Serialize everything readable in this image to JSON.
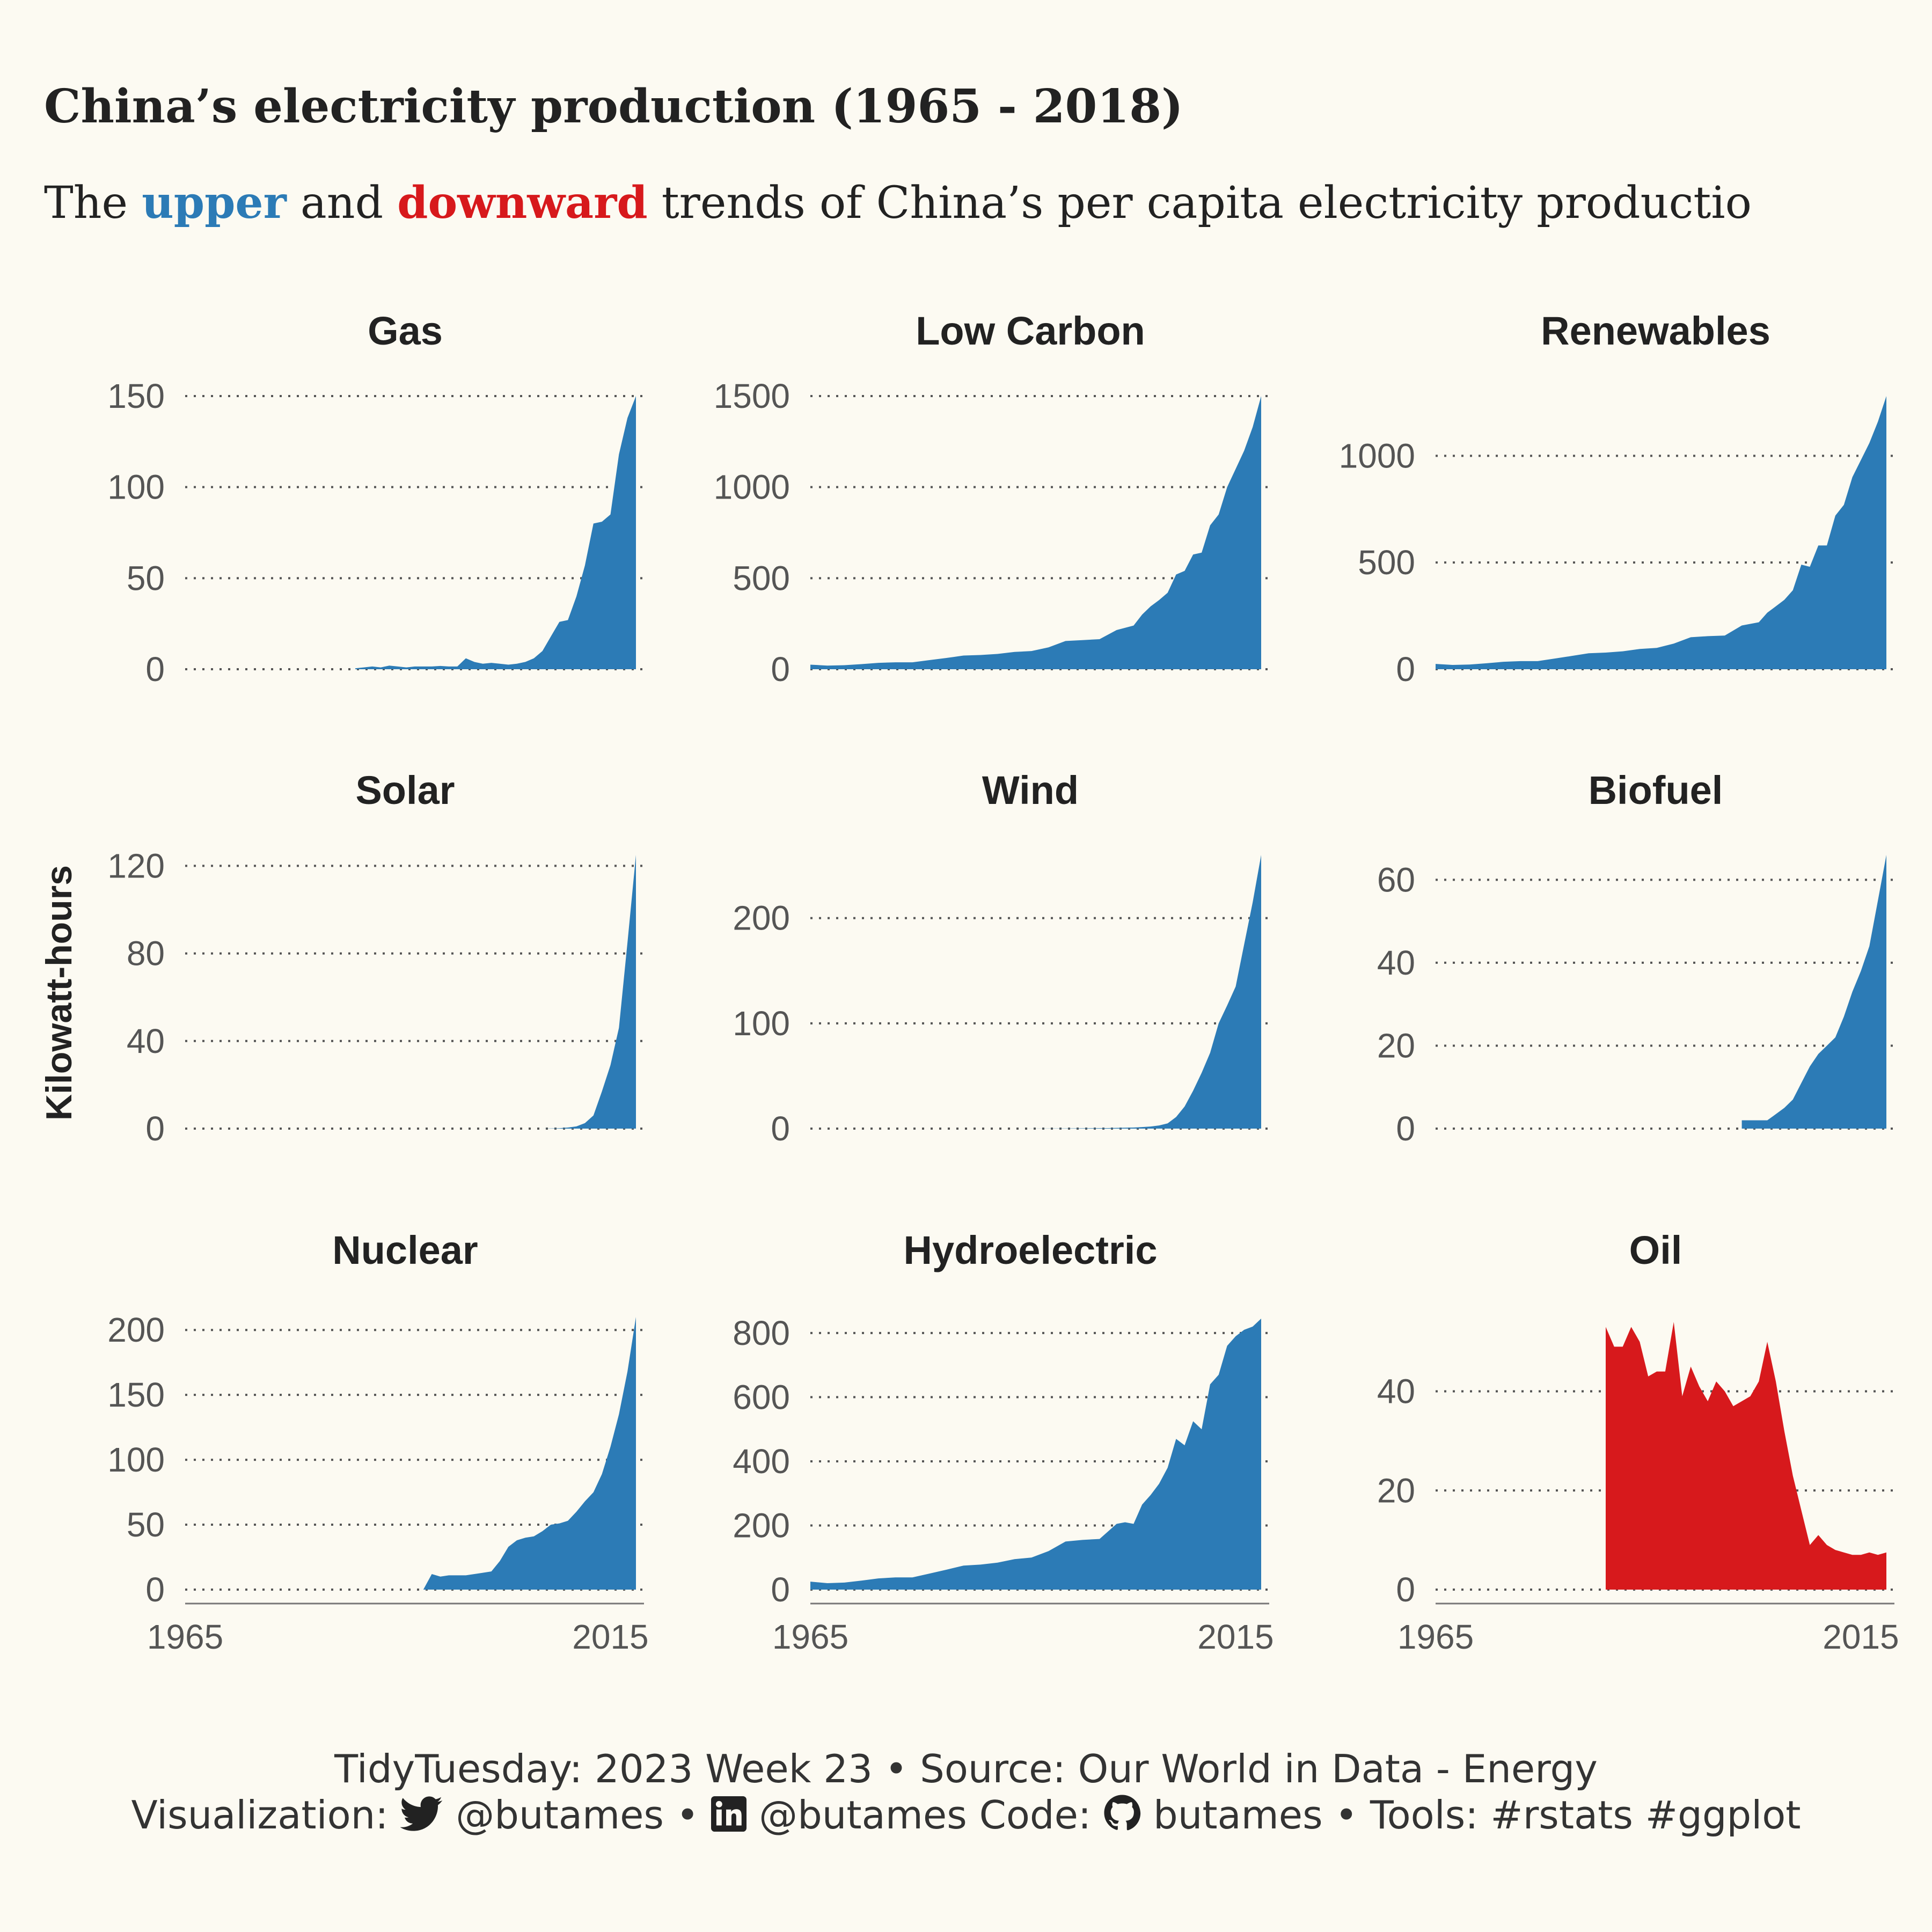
{
  "title": "China’s electricity production (1965 - 2018)",
  "subtitle": {
    "prefix": "The",
    "upper_word": "upper",
    "mid": "and",
    "downward_word": "downward",
    "suffix": "trends of China’s per capita electricity productio"
  },
  "colors": {
    "upper": "#2c7bb6",
    "downward": "#d7191c",
    "background": "#fcfaf2",
    "text": "#222222",
    "grid": "#555555"
  },
  "caption": {
    "line1": "TidyTuesday: 2023 Week 23 • Source: Our World in Data - Energy",
    "visualization_label": "Visualization:",
    "twitter_icon": "twitter-icon",
    "twitter_handle": "@butames",
    "bullet1": "•",
    "linkedin_icon": "linkedin-icon",
    "linkedin_handle": "@butames",
    "code_label": "Code:",
    "github_icon": "github-icon",
    "github_handle": "butames",
    "tools": "• Tools: #rstats #ggplot"
  },
  "chart_data": [
    {
      "type": "area",
      "title": "Gas",
      "trend": "upper",
      "ylabel": "Kilowatt-hours",
      "xlim": [
        1965,
        2018
      ],
      "ylim": [
        0,
        150
      ],
      "yticks": [
        0,
        50,
        100,
        150
      ],
      "xticks": [
        1965,
        2015
      ],
      "grid": true,
      "x": [
        1985,
        1986,
        1987,
        1988,
        1989,
        1990,
        1991,
        1992,
        1993,
        1994,
        1995,
        1996,
        1997,
        1998,
        1999,
        2000,
        2001,
        2002,
        2003,
        2004,
        2005,
        2006,
        2007,
        2008,
        2009,
        2010,
        2011,
        2012,
        2013,
        2014,
        2015,
        2016,
        2017,
        2018
      ],
      "values": [
        0.5,
        1,
        1.5,
        1,
        2,
        1.5,
        1,
        1.5,
        1.5,
        1.5,
        1.8,
        1.5,
        1.5,
        6,
        4,
        3,
        3.5,
        3,
        2.5,
        3,
        4,
        6,
        10,
        18,
        26,
        27,
        40,
        57,
        80,
        81,
        85,
        118,
        138,
        150
      ]
    },
    {
      "type": "area",
      "title": "Low Carbon",
      "trend": "upper",
      "ylabel": "Kilowatt-hours",
      "xlim": [
        1965,
        2018
      ],
      "ylim": [
        0,
        1500
      ],
      "yticks": [
        0,
        500,
        1000,
        1500
      ],
      "xticks": [
        1965,
        2015
      ],
      "grid": true,
      "x": [
        1965,
        1967,
        1969,
        1971,
        1973,
        1975,
        1977,
        1979,
        1981,
        1983,
        1985,
        1987,
        1989,
        1991,
        1993,
        1995,
        1997,
        1999,
        2001,
        2003,
        2004,
        2005,
        2006,
        2007,
        2008,
        2009,
        2010,
        2011,
        2012,
        2013,
        2014,
        2015,
        2016,
        2017,
        2018
      ],
      "values": [
        25,
        20,
        22,
        28,
        35,
        38,
        38,
        50,
        62,
        75,
        78,
        84,
        95,
        100,
        120,
        155,
        160,
        165,
        215,
        240,
        300,
        345,
        380,
        420,
        520,
        540,
        630,
        640,
        790,
        850,
        1000,
        1100,
        1200,
        1330,
        1500
      ]
    },
    {
      "type": "area",
      "title": "Renewables",
      "trend": "upper",
      "ylabel": "Kilowatt-hours",
      "xlim": [
        1965,
        2018
      ],
      "ylim": [
        0,
        1280
      ],
      "yticks": [
        0,
        500,
        1000
      ],
      "xticks": [
        1965,
        2015
      ],
      "grid": true,
      "x": [
        1965,
        1967,
        1969,
        1971,
        1973,
        1975,
        1977,
        1979,
        1981,
        1983,
        1985,
        1987,
        1989,
        1991,
        1993,
        1995,
        1997,
        1999,
        2001,
        2003,
        2004,
        2005,
        2006,
        2007,
        2008,
        2009,
        2010,
        2011,
        2012,
        2013,
        2014,
        2015,
        2016,
        2017,
        2018
      ],
      "values": [
        25,
        20,
        22,
        28,
        35,
        38,
        38,
        50,
        62,
        75,
        78,
        84,
        95,
        100,
        120,
        150,
        155,
        158,
        205,
        220,
        265,
        295,
        325,
        370,
        490,
        480,
        580,
        580,
        720,
        770,
        900,
        980,
        1060,
        1160,
        1280
      ]
    },
    {
      "type": "area",
      "title": "Solar",
      "trend": "upper",
      "ylabel": "Kilowatt-hours",
      "xlim": [
        1965,
        2018
      ],
      "ylim": [
        0,
        125
      ],
      "yticks": [
        0,
        40,
        80,
        120
      ],
      "xticks": [
        1965,
        2015
      ],
      "grid": true,
      "x": [
        2007,
        2008,
        2009,
        2010,
        2011,
        2012,
        2013,
        2014,
        2015,
        2016,
        2017,
        2018
      ],
      "values": [
        0,
        0.1,
        0.2,
        0.5,
        1,
        2.5,
        6,
        17,
        29,
        46,
        85,
        125
      ]
    },
    {
      "type": "area",
      "title": "Wind",
      "trend": "upper",
      "ylabel": "Kilowatt-hours",
      "xlim": [
        1965,
        2018
      ],
      "ylim": [
        0,
        260
      ],
      "yticks": [
        0,
        100,
        200
      ],
      "xticks": [
        1965,
        2015
      ],
      "grid": true,
      "x": [
        1990,
        1995,
        2000,
        2003,
        2004,
        2005,
        2006,
        2007,
        2008,
        2009,
        2010,
        2011,
        2012,
        2013,
        2014,
        2015,
        2016,
        2017,
        2018
      ],
      "values": [
        0,
        0.2,
        0.5,
        1,
        1.5,
        2,
        3,
        5,
        11,
        21,
        36,
        53,
        72,
        100,
        117,
        135,
        175,
        215,
        260
      ]
    },
    {
      "type": "area",
      "title": "Biofuel",
      "trend": "upper",
      "ylabel": "Kilowatt-hours",
      "xlim": [
        1965,
        2018
      ],
      "ylim": [
        0,
        66
      ],
      "yticks": [
        0,
        20,
        40,
        60
      ],
      "xticks": [
        1965,
        2015
      ],
      "grid": true,
      "x": [
        2001,
        2002,
        2003,
        2004,
        2005,
        2006,
        2007,
        2008,
        2009,
        2010,
        2011,
        2012,
        2013,
        2014,
        2015,
        2016,
        2017,
        2018
      ],
      "values": [
        2,
        2,
        2,
        2,
        3.5,
        5,
        7,
        11,
        15,
        18,
        20,
        22,
        27,
        33,
        38,
        44,
        55,
        66
      ]
    },
    {
      "type": "area",
      "title": "Nuclear",
      "trend": "upper",
      "ylabel": "Kilowatt-hours",
      "xlim": [
        1965,
        2018
      ],
      "ylim": [
        0,
        210
      ],
      "yticks": [
        0,
        50,
        100,
        150,
        200
      ],
      "xticks": [
        1965,
        2015
      ],
      "grid": true,
      "x": [
        1993,
        1994,
        1995,
        1996,
        1997,
        1998,
        1999,
        2000,
        2001,
        2002,
        2003,
        2004,
        2005,
        2006,
        2007,
        2008,
        2009,
        2010,
        2011,
        2012,
        2013,
        2014,
        2015,
        2016,
        2017,
        2018
      ],
      "values": [
        0,
        12,
        10,
        11,
        11,
        11,
        12,
        13,
        14,
        22,
        33,
        38,
        40,
        41,
        45,
        50,
        51,
        53,
        60,
        68,
        75,
        89,
        110,
        135,
        168,
        210
      ]
    },
    {
      "type": "area",
      "title": "Hydroelectric",
      "trend": "upper",
      "ylabel": "Kilowatt-hours",
      "xlim": [
        1965,
        2018
      ],
      "ylim": [
        0,
        850
      ],
      "yticks": [
        0,
        200,
        400,
        600,
        800
      ],
      "xticks": [
        1965,
        2015
      ],
      "grid": true,
      "x": [
        1965,
        1967,
        1969,
        1971,
        1973,
        1975,
        1977,
        1979,
        1981,
        1983,
        1985,
        1987,
        1989,
        1991,
        1993,
        1995,
        1997,
        1999,
        2001,
        2002,
        2003,
        2004,
        2005,
        2006,
        2007,
        2008,
        2009,
        2010,
        2011,
        2012,
        2013,
        2014,
        2015,
        2016,
        2017,
        2018
      ],
      "values": [
        25,
        20,
        22,
        28,
        35,
        38,
        38,
        50,
        62,
        75,
        78,
        84,
        95,
        100,
        120,
        150,
        155,
        158,
        205,
        210,
        205,
        265,
        295,
        330,
        380,
        470,
        450,
        525,
        500,
        640,
        670,
        760,
        790,
        810,
        820,
        845
      ]
    },
    {
      "type": "area",
      "title": "Oil",
      "trend": "downward",
      "ylabel": "Kilowatt-hours",
      "xlim": [
        1965,
        2018
      ],
      "ylim": [
        0,
        55
      ],
      "yticks": [
        0,
        20,
        40
      ],
      "xticks": [
        1965,
        2015
      ],
      "grid": true,
      "x": [
        1985,
        1986,
        1987,
        1988,
        1989,
        1990,
        1991,
        1992,
        1993,
        1994,
        1995,
        1996,
        1997,
        1998,
        1999,
        2000,
        2001,
        2002,
        2003,
        2004,
        2005,
        2006,
        2007,
        2008,
        2009,
        2010,
        2011,
        2012,
        2013,
        2014,
        2015,
        2016,
        2017,
        2018
      ],
      "values": [
        53,
        49,
        49,
        53,
        50,
        43,
        44,
        44,
        54,
        39,
        45,
        41,
        38,
        42,
        40,
        37,
        38,
        39,
        42,
        50,
        42,
        32,
        23,
        16,
        9,
        11,
        9,
        8,
        7.5,
        7,
        7,
        7.5,
        7,
        7.5
      ]
    }
  ]
}
